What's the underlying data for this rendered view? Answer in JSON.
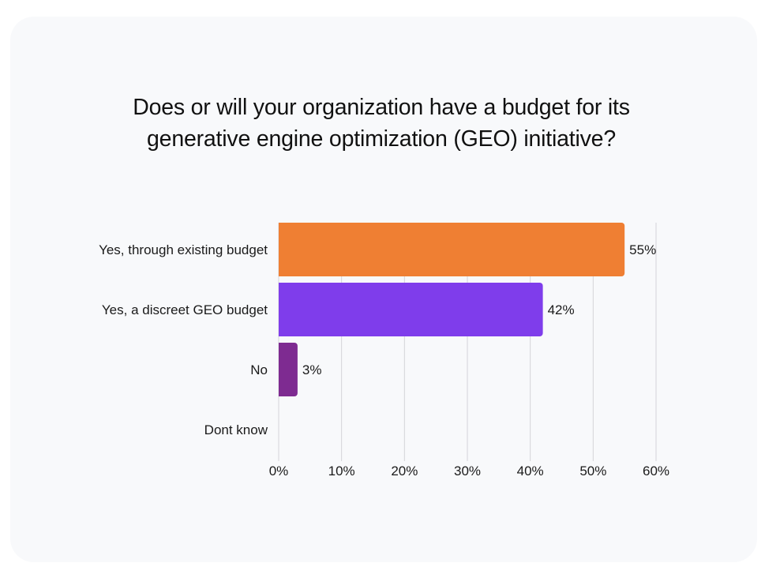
{
  "chart_data": {
    "type": "bar",
    "orientation": "horizontal",
    "title": "Does or will your organization have a budget for its generative engine optimization (GEO) initiative?",
    "title_lines": [
      "Does or will your organization have a budget for its",
      "generative engine optimization (GEO) initiative?"
    ],
    "categories": [
      "Yes, through existing budget",
      "Yes, a discreet GEO budget",
      "No",
      "Dont know"
    ],
    "values": [
      55,
      42,
      3,
      0
    ],
    "value_labels": [
      "55%",
      "42%",
      "3%",
      ""
    ],
    "colors": [
      "#ef7f33",
      "#7f3deb",
      "#7e2b91",
      "#7e2b91"
    ],
    "xlabel": "",
    "ylabel": "",
    "xlim": [
      0,
      60
    ],
    "xticks": [
      0,
      10,
      20,
      30,
      40,
      50,
      60
    ],
    "xtick_labels": [
      "0%",
      "10%",
      "20%",
      "30%",
      "40%",
      "50%",
      "60%"
    ],
    "grid": "vertical",
    "grid_color": "#d4d4d8",
    "legend": "none",
    "background": "#f8f9fb"
  }
}
